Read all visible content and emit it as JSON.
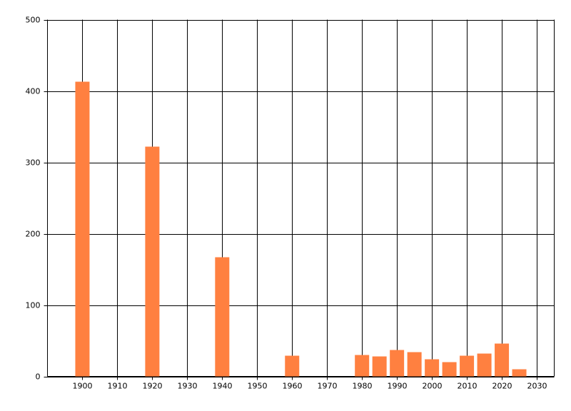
{
  "chart_data": {
    "type": "bar",
    "x": [
      1900,
      1920,
      1940,
      1960,
      1980,
      1985,
      1990,
      1995,
      2000,
      2005,
      2010,
      2015,
      2020,
      2025
    ],
    "values": [
      413,
      322,
      167,
      29,
      30,
      28,
      37,
      34,
      24,
      20,
      29,
      32,
      46,
      10
    ],
    "color": "#ff8040",
    "xlim": [
      1890,
      2035
    ],
    "xticks": [
      1900,
      1910,
      1920,
      1930,
      1940,
      1950,
      1960,
      1970,
      1980,
      1990,
      2000,
      2010,
      2020,
      2030
    ],
    "ylim": [
      0,
      500
    ],
    "yticks": [
      0,
      100,
      200,
      300,
      400,
      500
    ],
    "grid": true
  }
}
